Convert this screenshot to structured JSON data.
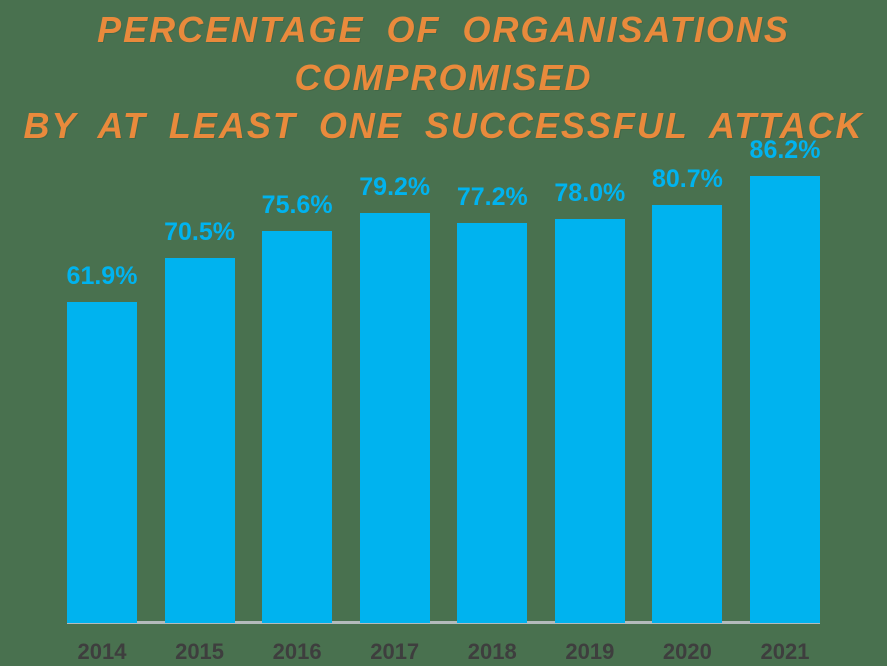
{
  "page": {
    "background_color": "#49714F"
  },
  "title": {
    "line1": "PERCENTAGE OF ORGANISATIONS COMPROMISED",
    "line2": "BY AT LEAST ONE SUCCESSFUL ATTACK",
    "color": "#E98A3C"
  },
  "chart_data": {
    "type": "bar",
    "title": "Percentage of organisations compromised by at least one successful attack",
    "categories": [
      "2014",
      "2015",
      "2016",
      "2017",
      "2018",
      "2019",
      "2020",
      "2021"
    ],
    "values": [
      61.9,
      70.5,
      75.6,
      79.2,
      77.2,
      78.0,
      80.7,
      86.2
    ],
    "data_labels": [
      "61.9%",
      "70.5%",
      "75.6%",
      "79.2%",
      "77.2%",
      "78.0%",
      "80.7%",
      "86.2%"
    ],
    "xlabel": "",
    "ylabel": "",
    "ylim": [
      0,
      100
    ],
    "grid": false,
    "legend": null,
    "bar_color": "#00B3EF",
    "data_label_color": "#00B3EF",
    "category_label_color": "#3E3E3E",
    "axis_line_color": "#B3BBBC"
  }
}
